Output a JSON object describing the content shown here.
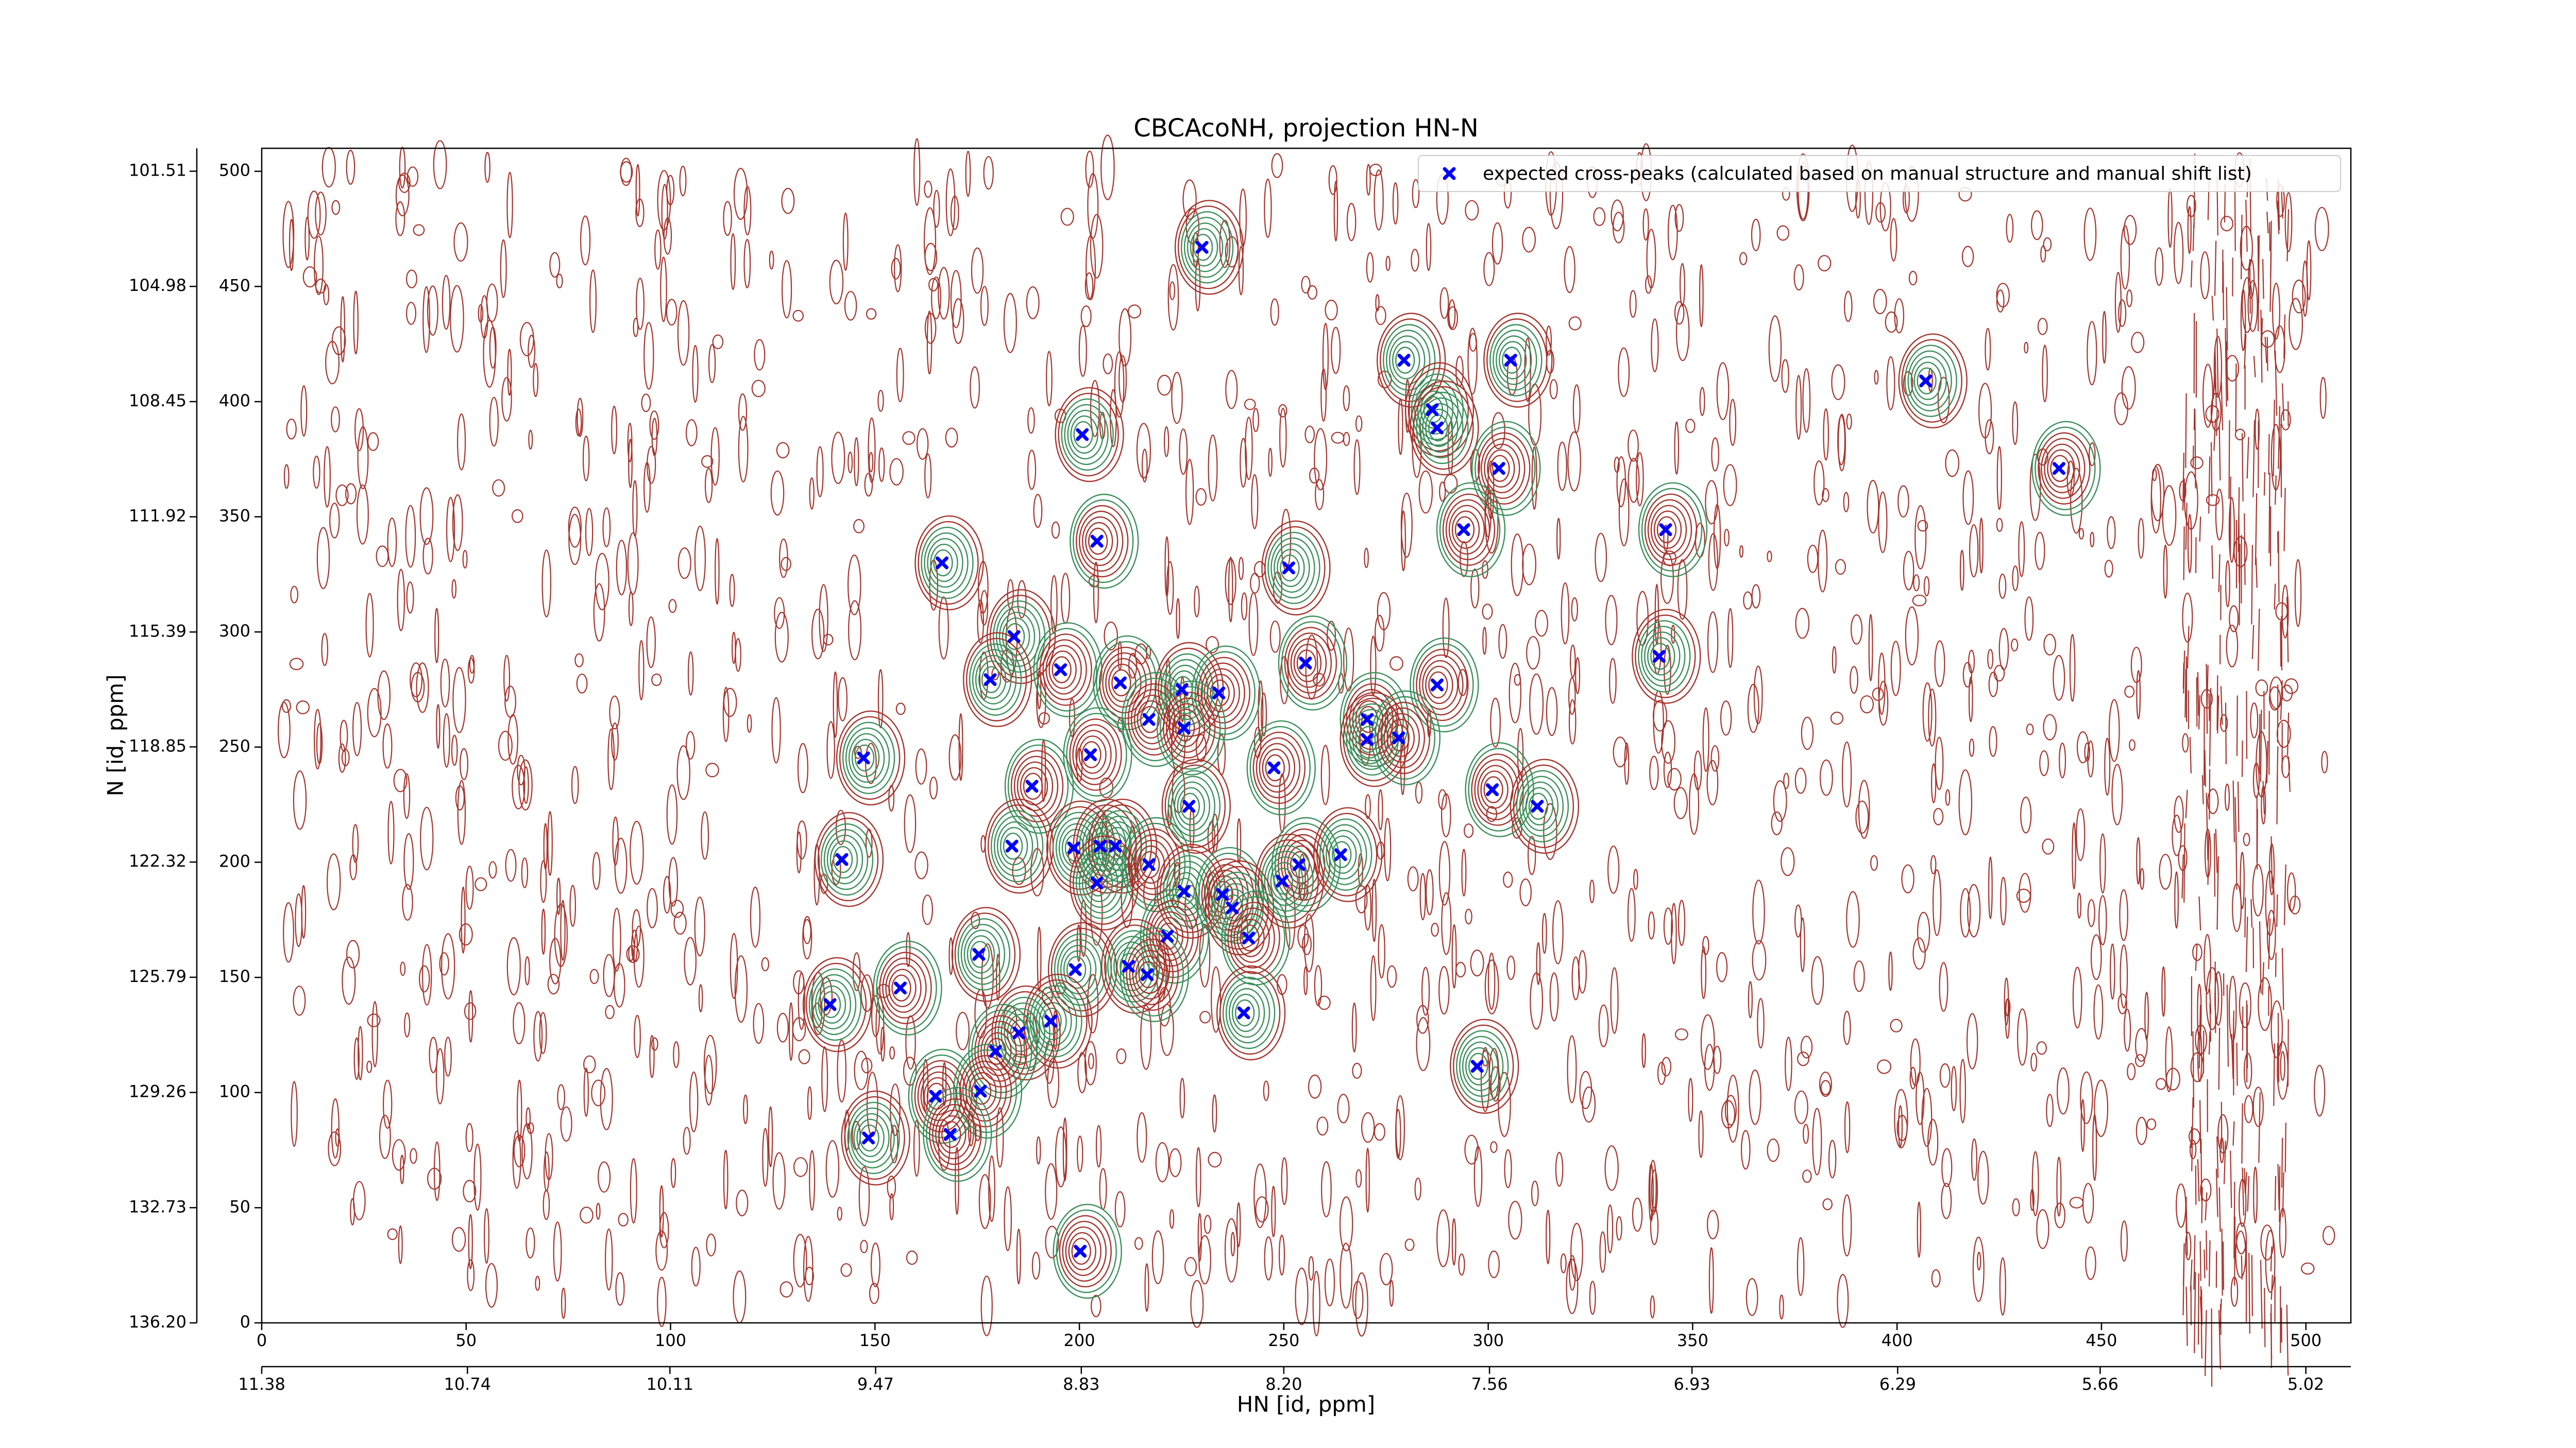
{
  "chart_data": {
    "type": "scatter",
    "title": "CBCAcoNH, projection HN-N",
    "xlabel": "HN [id, ppm]",
    "ylabel": "N [id, ppm]",
    "xlim": [
      0,
      511
    ],
    "ylim": [
      0,
      510
    ],
    "xticks": [
      0,
      50,
      100,
      150,
      200,
      250,
      300,
      350,
      400,
      450,
      500
    ],
    "yticks": [
      0,
      50,
      100,
      150,
      200,
      250,
      300,
      350,
      400,
      450,
      500
    ],
    "x2lim": [
      11.38,
      4.88
    ],
    "x2ticks": [
      11.38,
      10.74,
      10.11,
      9.47,
      8.83,
      {
        "value": 8.2,
        "label": "8.20"
      },
      7.56,
      6.93,
      6.29,
      5.66,
      5.02
    ],
    "y2lim": [
      136.2,
      100.82
    ],
    "y2ticks": [
      101.51,
      104.98,
      108.45,
      111.92,
      115.39,
      118.85,
      122.32,
      125.79,
      129.26,
      132.73,
      {
        "value": 136.2,
        "label": "136.20"
      }
    ],
    "legend_position": "upper right",
    "series": [
      {
        "name": "expected cross-peaks (calculated based on manual structure and manual shift list)",
        "color": "#0000ff",
        "x": [
          230,
          279.4,
          305.5,
          407,
          286.3,
          287.5,
          200.7,
          302.6,
          439.6,
          294,
          343.4,
          204.3,
          166.4,
          251.2,
          184,
          178.2,
          195.4,
          210,
          225.1,
          234.1,
          255.3,
          287.5,
          341.8,
          217,
          225.6,
          270.4,
          270.4,
          278.1,
          147.2,
          202.7,
          247.6,
          188.4,
          301,
          312,
          226.8,
          141.9,
          183.5,
          198.6,
          205.1,
          208.8,
          217,
          253.7,
          263.9,
          204.3,
          225.6,
          235,
          249.6,
          237.4,
          221.5,
          241.4,
          175.4,
          199,
          212,
          216.6,
          156.2,
          139,
          240.2,
          193,
          185.2,
          179.5,
          297.3,
          164.8,
          175.8,
          168.4,
          148.4,
          200.2
        ],
        "values": [
          467,
          418,
          418,
          409,
          396.5,
          388.6,
          385.7,
          371,
          371,
          344.4,
          344.4,
          339.4,
          330,
          327.8,
          298,
          279.3,
          283.6,
          277.9,
          275,
          273.5,
          286.5,
          277,
          289.4,
          262,
          258.3,
          262,
          253.3,
          254,
          245.3,
          246.7,
          241,
          233,
          231.5,
          224.3,
          224.3,
          201.2,
          207,
          206.2,
          207,
          207,
          199,
          199,
          203.3,
          191,
          187.4,
          186,
          191.8,
          180.2,
          167.9,
          167.1,
          160,
          153.4,
          154.8,
          151.2,
          145.4,
          138.2,
          134.6,
          131,
          125.9,
          117.9,
          111.4,
          98.4,
          100.6,
          81.8,
          80.3,
          31.1
        ]
      }
    ]
  }
}
